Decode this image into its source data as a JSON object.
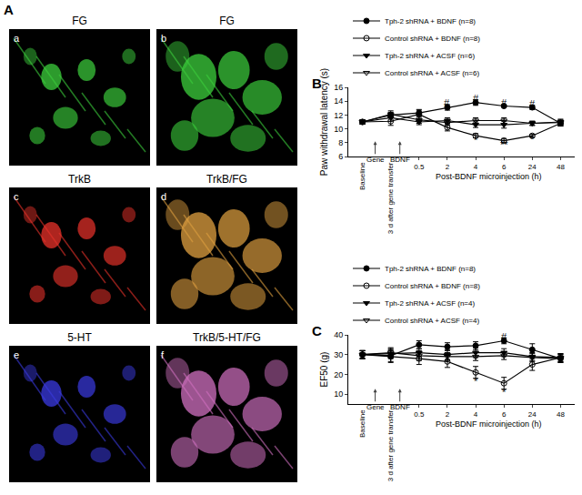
{
  "panel_a": {
    "label": "A",
    "tiles": [
      {
        "letter": "a",
        "title": "FG",
        "color": "#3ccf3c"
      },
      {
        "letter": "b",
        "title": "FG",
        "color": "#3ccf3c"
      },
      {
        "letter": "c",
        "title": "TrkB",
        "color": "#e8322a"
      },
      {
        "letter": "d",
        "title": "TrkB/FG",
        "color": "#e0a040"
      },
      {
        "letter": "e",
        "title": "5-HT",
        "color": "#3a3ae0"
      },
      {
        "letter": "f",
        "title": "TrkB/5-HT/FG",
        "color": "#d070c0"
      }
    ]
  },
  "chart_data": [
    {
      "type": "line",
      "label": "B",
      "x_title": "Post-BDNF microinjection (h)",
      "y_title": "Paw withdrawal latency (s)",
      "categories": [
        "Baseline",
        "3 d after gene transfer",
        "0.5",
        "2",
        "4",
        "6",
        "24",
        "48"
      ],
      "ylim": [
        6,
        16
      ],
      "yticks": [
        6,
        8,
        10,
        12,
        14,
        16
      ],
      "legend": "top",
      "grid": false,
      "series": [
        {
          "name": "Tph-2 shRNA + BDNF (n=8)",
          "color": "#000000",
          "marker": "circle",
          "line_style": "solid",
          "values": [
            11.0,
            12.0,
            12.3,
            13.1,
            13.8,
            13.3,
            13.1,
            10.8
          ],
          "error": [
            0.3,
            0.4,
            0.5,
            0.4,
            0.4,
            0.15,
            0.3,
            0.4
          ]
        },
        {
          "name": "Control shRNA + BDNF (n=8)",
          "color": "#000000",
          "marker": "circle-open",
          "line_style": "solid",
          "values": [
            11.0,
            11.1,
            12.1,
            10.2,
            9.0,
            8.3,
            9.0,
            10.8
          ],
          "error": [
            0.3,
            0.6,
            0.6,
            0.5,
            0.3,
            0.3,
            0.2,
            0.4
          ]
        },
        {
          "name": "Tph-2 shRNA + ACSF (n=6)",
          "color": "#000000",
          "marker": "triangle-down",
          "line_style": "solid",
          "values": [
            11.0,
            11.6,
            11.0,
            11.2,
            10.6,
            10.6,
            10.8,
            11.0
          ],
          "error": [
            0.3,
            0.5,
            0.4,
            0.4,
            0.4,
            0.5,
            0.3,
            0.4
          ]
        },
        {
          "name": "Control shRNA + ACSF (n=6)",
          "color": "#000000",
          "marker": "triangle-down-open",
          "line_style": "solid",
          "values": [
            11.0,
            12.1,
            11.3,
            10.9,
            11.2,
            11.2,
            10.8,
            10.9
          ],
          "error": [
            0.3,
            0.5,
            0.5,
            0.4,
            0.4,
            0.4,
            0.3,
            0.4
          ]
        }
      ],
      "annotations": [
        {
          "text": "#",
          "x": "2",
          "y": 13.7
        },
        {
          "text": "#",
          "x": "4",
          "y": 14.4
        },
        {
          "text": "#",
          "x": "6",
          "y": 13.7
        },
        {
          "text": "#",
          "x": "24",
          "y": 13.6
        },
        {
          "text": "*",
          "x": "4",
          "y": 8.4
        },
        {
          "text": "**",
          "x": "6",
          "y": 7.7
        },
        {
          "text": "*",
          "x": "24",
          "y": 8.5
        }
      ],
      "arrows": [
        {
          "text": "Gene",
          "x": "Baseline"
        },
        {
          "text": "BDNF",
          "x": "3 d after gene transfer"
        }
      ]
    },
    {
      "type": "line",
      "label": "C",
      "x_title": "Post-BDNF microinjection (h)",
      "y_title": "EF50 (g)",
      "categories": [
        "Baseline",
        "3 d after gene transfer",
        "0.5",
        "2",
        "4",
        "6",
        "24",
        "48"
      ],
      "ylim": [
        5,
        40
      ],
      "yticks": [
        10,
        20,
        30,
        40
      ],
      "legend": "top",
      "grid": false,
      "series": [
        {
          "name": "Tph-2 shRNA + BDNF (n=8)",
          "color": "#000000",
          "marker": "circle",
          "line_style": "solid",
          "values": [
            30.0,
            29.5,
            35.0,
            34.0,
            34.5,
            37.0,
            32.5,
            28.0
          ],
          "error": [
            2.0,
            3.0,
            2.0,
            2.0,
            2.0,
            1.5,
            3.0,
            2.0
          ]
        },
        {
          "name": "Control shRNA + BDNF (n=8)",
          "color": "#000000",
          "marker": "circle-open",
          "line_style": "solid",
          "values": [
            30.0,
            29.0,
            28.0,
            26.5,
            21.0,
            15.5,
            25.0,
            28.5
          ],
          "error": [
            2.0,
            3.0,
            3.0,
            3.0,
            3.0,
            3.0,
            3.0,
            2.0
          ]
        },
        {
          "name": "Tph-2 shRNA + ACSF (n=4)",
          "color": "#000000",
          "marker": "triangle-down",
          "line_style": "solid",
          "values": [
            30.0,
            30.5,
            31.0,
            30.0,
            31.0,
            31.0,
            29.0,
            28.5
          ],
          "error": [
            2.0,
            2.5,
            2.0,
            2.5,
            2.5,
            2.0,
            2.0,
            2.0
          ]
        },
        {
          "name": "Control shRNA + ACSF (n=4)",
          "color": "#000000",
          "marker": "triangle-down-open",
          "line_style": "solid",
          "values": [
            30.0,
            31.0,
            29.5,
            29.0,
            29.0,
            29.5,
            28.5,
            28.0
          ],
          "error": [
            2.0,
            2.5,
            2.5,
            2.0,
            2.0,
            2.0,
            2.0,
            2.0
          ]
        }
      ],
      "annotations": [
        {
          "text": "*",
          "x": "4",
          "y": 16.5
        },
        {
          "text": "*",
          "x": "6",
          "y": 11.0
        },
        {
          "text": "#",
          "x": "6",
          "y": 39.0
        }
      ],
      "arrows": [
        {
          "text": "Gene",
          "x": "Baseline"
        },
        {
          "text": "BDNF",
          "x": "3 d after gene transfer"
        }
      ]
    }
  ]
}
